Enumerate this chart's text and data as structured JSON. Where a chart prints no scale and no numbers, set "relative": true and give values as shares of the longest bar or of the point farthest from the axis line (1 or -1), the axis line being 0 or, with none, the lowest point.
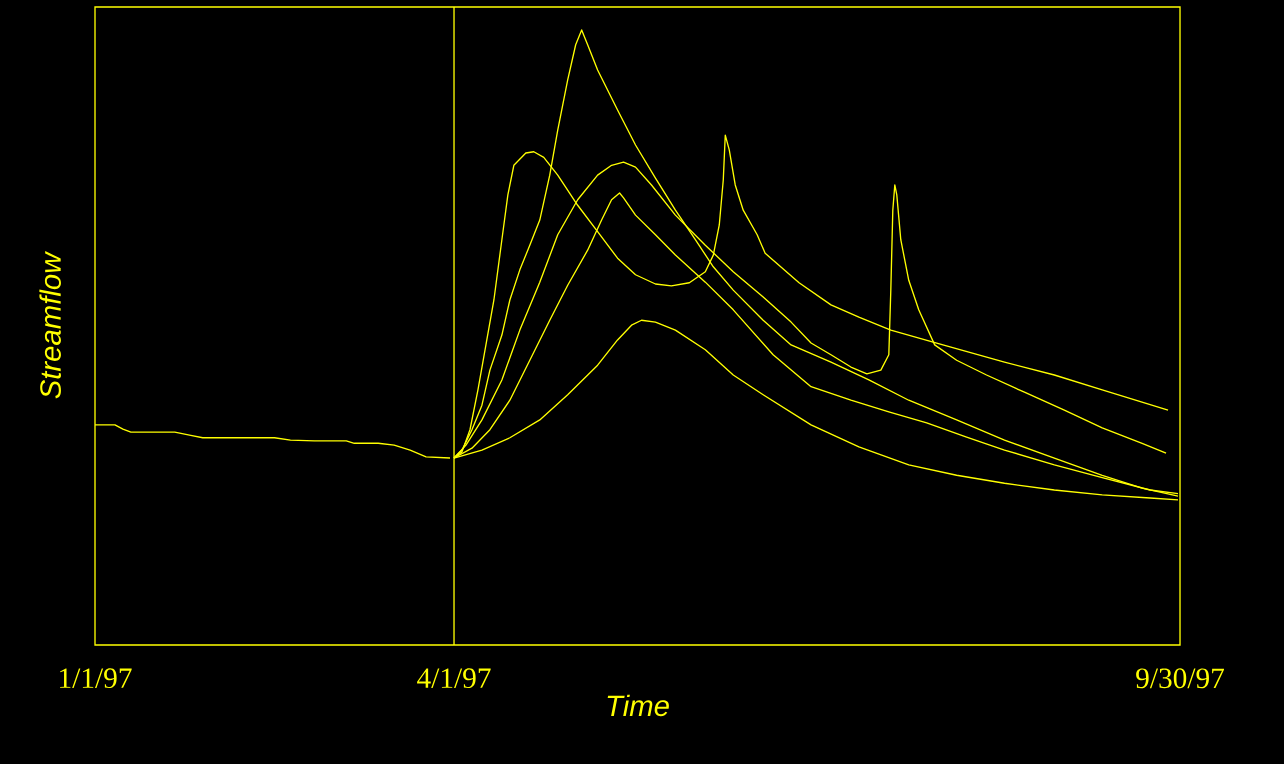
{
  "chart_data": {
    "type": "line",
    "xlabel": "Time",
    "ylabel": "Streamflow",
    "relative": true,
    "xlim": [
      "1997-01-01",
      "1997-09-30"
    ],
    "xticks": [
      {
        "value": "1997-01-01",
        "label": "1/1/97"
      },
      {
        "value": "1997-04-01",
        "label": "4/1/97"
      },
      {
        "value": "1997-09-30",
        "label": "9/30/97"
      }
    ],
    "ref_lines": [
      {
        "axis": "x",
        "value": "1997-04-01",
        "color": "#ffff00"
      }
    ],
    "series": [
      {
        "color": "#ffff00",
        "x": [
          "1997-01-01",
          "1997-01-06",
          "1997-01-08",
          "1997-01-10",
          "1997-01-21",
          "1997-01-25",
          "1997-01-28",
          "1997-02-15",
          "1997-02-19",
          "1997-02-25",
          "1997-03-05",
          "1997-03-07",
          "1997-03-13",
          "1997-03-17",
          "1997-03-21",
          "1997-03-25",
          "1997-03-31"
        ],
        "values": [
          0.358,
          0.358,
          0.351,
          0.346,
          0.346,
          0.341,
          0.337,
          0.337,
          0.333,
          0.332,
          0.332,
          0.328,
          0.328,
          0.325,
          0.317,
          0.306,
          0.304
        ]
      },
      {
        "color": "#ffff00",
        "x": [
          "1997-04-01",
          "1997-04-03",
          "1997-04-05",
          "1997-04-07",
          "1997-04-09",
          "1997-04-11",
          "1997-04-13",
          "1997-04-14T12:00",
          "1997-04-16",
          "1997-04-19",
          "1997-04-21",
          "1997-04-23T12:00",
          "1997-04-27",
          "1997-05-02",
          "1997-05-07",
          "1997-05-12",
          "1997-05-16T12:00",
          "1997-05-21T12:00",
          "1997-05-25T12:00",
          "1997-05-30",
          "1997-06-03",
          "1997-06-05",
          "1997-06-06T12:00",
          "1997-06-07T12:00",
          "1997-06-08",
          "1997-06-09",
          "1997-06-10T12:00",
          "1997-06-12T12:00",
          "1997-06-16",
          "1997-06-18",
          "1997-06-26T12:00",
          "1997-07-04T12:00",
          "1997-07-11T12:00",
          "1997-07-19T12:00",
          "1997-07-31",
          "1997-08-17",
          "1997-08-29T12:00",
          "1997-09-10T12:00",
          "1997-09-27"
        ],
        "values": [
          0.304,
          0.314,
          0.35,
          0.415,
          0.488,
          0.561,
          0.659,
          0.732,
          0.78,
          0.8,
          0.802,
          0.793,
          0.764,
          0.715,
          0.672,
          0.629,
          0.602,
          0.587,
          0.584,
          0.589,
          0.607,
          0.634,
          0.683,
          0.756,
          0.829,
          0.805,
          0.748,
          0.707,
          0.667,
          0.637,
          0.589,
          0.553,
          0.533,
          0.512,
          0.491,
          0.46,
          0.439,
          0.415,
          0.382
        ]
      },
      {
        "color": "#ffff00",
        "x": [
          "1997-04-01",
          "1997-04-03",
          "1997-04-05T12:00",
          "1997-04-08",
          "1997-04-10",
          "1997-04-13",
          "1997-04-15",
          "1997-04-17T12:00",
          "1997-04-20",
          "1997-04-22T12:00",
          "1997-04-25",
          "1997-04-27",
          "1997-04-29T12:00",
          "1997-05-01T12:00",
          "1997-05-03",
          "1997-05-04T12:00",
          "1997-05-07",
          "1997-05-12",
          "1997-05-16T12:00",
          "1997-05-21T12:00",
          "1997-05-26T12:00",
          "1997-05-31T12:00",
          "1997-06-05",
          "1997-06-10",
          "1997-06-17T12:00",
          "1997-06-24T12:00",
          "1997-07-04T12:00",
          "1997-07-14",
          "1997-07-24",
          "1997-08-05",
          "1997-08-17",
          "1997-08-29T12:00",
          "1997-09-10T12:00",
          "1997-09-20T12:00",
          "1997-09-29T12:00"
        ],
        "values": [
          0.304,
          0.317,
          0.35,
          0.39,
          0.447,
          0.504,
          0.561,
          0.61,
          0.65,
          0.691,
          0.764,
          0.837,
          0.919,
          0.976,
          1.0,
          0.976,
          0.935,
          0.87,
          0.813,
          0.759,
          0.707,
          0.659,
          0.615,
          0.577,
          0.528,
          0.488,
          0.46,
          0.431,
          0.398,
          0.366,
          0.333,
          0.304,
          0.276,
          0.255,
          0.242
        ]
      },
      {
        "color": "#ffff00",
        "x": [
          "1997-04-01",
          "1997-04-04",
          "1997-04-08",
          "1997-04-13",
          "1997-04-17T12:00",
          "1997-04-22T12:00",
          "1997-04-27",
          "1997-05-02",
          "1997-05-07",
          "1997-05-10T12:00",
          "1997-05-13T12:00",
          "1997-05-16T12:00",
          "1997-05-20T12:00",
          "1997-05-26T12:00",
          "1997-06-03",
          "1997-06-10",
          "1997-06-17T12:00",
          "1997-06-24T12:00",
          "1997-06-29T12:00",
          "1997-07-04T12:00",
          "1997-07-09T12:00",
          "1997-07-13T12:00",
          "1997-07-17",
          "1997-07-19",
          "1997-07-19T12:00",
          "1997-07-20",
          "1997-07-20T12:00",
          "1997-07-21",
          "1997-07-22",
          "1997-07-24",
          "1997-07-26T12:00",
          "1997-07-30T12:00",
          "1997-08-05",
          "1997-08-12T12:00",
          "1997-08-22",
          "1997-09-01",
          "1997-09-10T12:00",
          "1997-09-20T12:00",
          "1997-09-26T12:00"
        ],
        "values": [
          0.304,
          0.325,
          0.366,
          0.431,
          0.512,
          0.59,
          0.667,
          0.724,
          0.764,
          0.78,
          0.785,
          0.777,
          0.748,
          0.699,
          0.65,
          0.607,
          0.566,
          0.525,
          0.491,
          0.472,
          0.452,
          0.441,
          0.447,
          0.472,
          0.577,
          0.707,
          0.748,
          0.732,
          0.659,
          0.593,
          0.545,
          0.488,
          0.463,
          0.439,
          0.411,
          0.382,
          0.353,
          0.328,
          0.312
        ]
      },
      {
        "color": "#ffff00",
        "x": [
          "1997-04-01",
          "1997-04-05T12:00",
          "1997-04-10",
          "1997-04-15",
          "1997-04-20",
          "1997-04-25",
          "1997-04-29T12:00",
          "1997-05-04T12:00",
          "1997-05-08",
          "1997-05-10T12:00",
          "1997-05-12T12:00",
          "1997-05-13T12:00",
          "1997-05-16T12:00",
          "1997-05-21T12:00",
          "1997-05-26T12:00",
          "1997-06-03",
          "1997-06-10",
          "1997-06-20",
          "1997-06-29T12:00",
          "1997-07-09T12:00",
          "1997-07-19",
          "1997-07-28T12:00",
          "1997-08-07T12:00",
          "1997-08-17",
          "1997-08-29T12:00",
          "1997-09-10T12:00",
          "1997-09-22T12:00",
          "1997-09-29T12:00"
        ],
        "values": [
          0.304,
          0.32,
          0.35,
          0.398,
          0.463,
          0.528,
          0.585,
          0.642,
          0.691,
          0.724,
          0.735,
          0.727,
          0.699,
          0.667,
          0.634,
          0.59,
          0.545,
          0.472,
          0.42,
          0.398,
          0.379,
          0.361,
          0.338,
          0.317,
          0.293,
          0.272,
          0.252,
          0.246
        ]
      },
      {
        "color": "#ffff00",
        "x": [
          "1997-04-01",
          "1997-04-08",
          "1997-04-15",
          "1997-04-22T12:00",
          "1997-04-29T12:00",
          "1997-05-07",
          "1997-05-12",
          "1997-05-15T12:00",
          "1997-05-18",
          "1997-05-21T12:00",
          "1997-05-26T12:00",
          "1997-06-03",
          "1997-06-10",
          "1997-06-17T12:00",
          "1997-06-29T12:00",
          "1997-07-11T12:00",
          "1997-07-24",
          "1997-08-05",
          "1997-08-17",
          "1997-08-29T12:00",
          "1997-09-10T12:00",
          "1997-09-22T12:00",
          "1997-09-29T12:00"
        ],
        "values": [
          0.304,
          0.317,
          0.337,
          0.366,
          0.407,
          0.455,
          0.496,
          0.52,
          0.528,
          0.525,
          0.512,
          0.48,
          0.439,
          0.407,
          0.358,
          0.322,
          0.293,
          0.276,
          0.263,
          0.252,
          0.244,
          0.239,
          0.236
        ]
      }
    ]
  }
}
